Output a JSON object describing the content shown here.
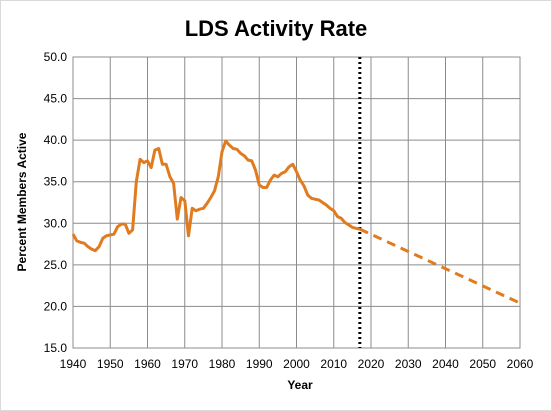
{
  "chart_data": {
    "type": "line",
    "title": "LDS Activity Rate",
    "xlabel": "Year",
    "ylabel": "Percent Members Active",
    "xlim": [
      1940,
      2060
    ],
    "ylim": [
      15.0,
      50.0
    ],
    "x_ticks": [
      "1940",
      "1950",
      "1960",
      "1970",
      "1980",
      "1990",
      "2000",
      "2010",
      "2020",
      "2030",
      "2040",
      "2050",
      "2060"
    ],
    "y_ticks": [
      "15.0",
      "20.0",
      "25.0",
      "30.0",
      "35.0",
      "40.0",
      "45.0",
      "50.0"
    ],
    "grid": true,
    "legend": "none",
    "reference_line": {
      "x": 2017,
      "style": "dotted",
      "color": "#000000"
    },
    "series": [
      {
        "style": "solid",
        "color": "#E07B1F",
        "points": [
          [
            1940,
            28.7
          ],
          [
            1941,
            27.9
          ],
          [
            1942,
            27.7
          ],
          [
            1943,
            27.6
          ],
          [
            1944,
            27.2
          ],
          [
            1945,
            26.9
          ],
          [
            1946,
            26.7
          ],
          [
            1947,
            27.2
          ],
          [
            1948,
            28.2
          ],
          [
            1949,
            28.5
          ],
          [
            1950,
            28.6
          ],
          [
            1951,
            28.7
          ],
          [
            1952,
            29.6
          ],
          [
            1953,
            29.9
          ],
          [
            1954,
            29.9
          ],
          [
            1955,
            28.8
          ],
          [
            1956,
            29.2
          ],
          [
            1957,
            35.0
          ],
          [
            1958,
            37.7
          ],
          [
            1959,
            37.3
          ],
          [
            1960,
            37.5
          ],
          [
            1961,
            36.7
          ],
          [
            1962,
            38.8
          ],
          [
            1963,
            39.0
          ],
          [
            1964,
            37.1
          ],
          [
            1965,
            37.1
          ],
          [
            1966,
            35.6
          ],
          [
            1967,
            34.8
          ],
          [
            1968,
            30.5
          ],
          [
            1969,
            33.1
          ],
          [
            1970,
            32.7
          ],
          [
            1971,
            28.5
          ],
          [
            1972,
            31.8
          ],
          [
            1973,
            31.5
          ],
          [
            1974,
            31.7
          ],
          [
            1975,
            31.8
          ],
          [
            1976,
            32.4
          ],
          [
            1977,
            33.1
          ],
          [
            1978,
            33.9
          ],
          [
            1979,
            35.6
          ],
          [
            1980,
            38.6
          ],
          [
            1981,
            39.9
          ],
          [
            1982,
            39.4
          ],
          [
            1983,
            39.0
          ],
          [
            1984,
            38.9
          ],
          [
            1985,
            38.4
          ],
          [
            1986,
            38.1
          ],
          [
            1987,
            37.6
          ],
          [
            1988,
            37.5
          ],
          [
            1989,
            36.4
          ],
          [
            1990,
            34.6
          ],
          [
            1991,
            34.3
          ],
          [
            1992,
            34.3
          ],
          [
            1993,
            35.2
          ],
          [
            1994,
            35.8
          ],
          [
            1995,
            35.6
          ],
          [
            1996,
            36.0
          ],
          [
            1997,
            36.2
          ],
          [
            1998,
            36.8
          ],
          [
            1999,
            37.1
          ],
          [
            2000,
            36.2
          ],
          [
            2001,
            35.2
          ],
          [
            2002,
            34.5
          ],
          [
            2003,
            33.4
          ],
          [
            2004,
            33.0
          ],
          [
            2005,
            32.9
          ],
          [
            2006,
            32.8
          ],
          [
            2007,
            32.5
          ],
          [
            2008,
            32.2
          ],
          [
            2009,
            31.8
          ],
          [
            2010,
            31.5
          ],
          [
            2011,
            30.8
          ],
          [
            2012,
            30.6
          ],
          [
            2013,
            30.1
          ],
          [
            2014,
            29.8
          ],
          [
            2015,
            29.5
          ],
          [
            2016,
            29.4
          ],
          [
            2017,
            29.3
          ]
        ]
      },
      {
        "style": "dashed",
        "color": "#E07B1F",
        "points": [
          [
            2017,
            29.3
          ],
          [
            2060,
            20.4
          ]
        ]
      }
    ]
  }
}
